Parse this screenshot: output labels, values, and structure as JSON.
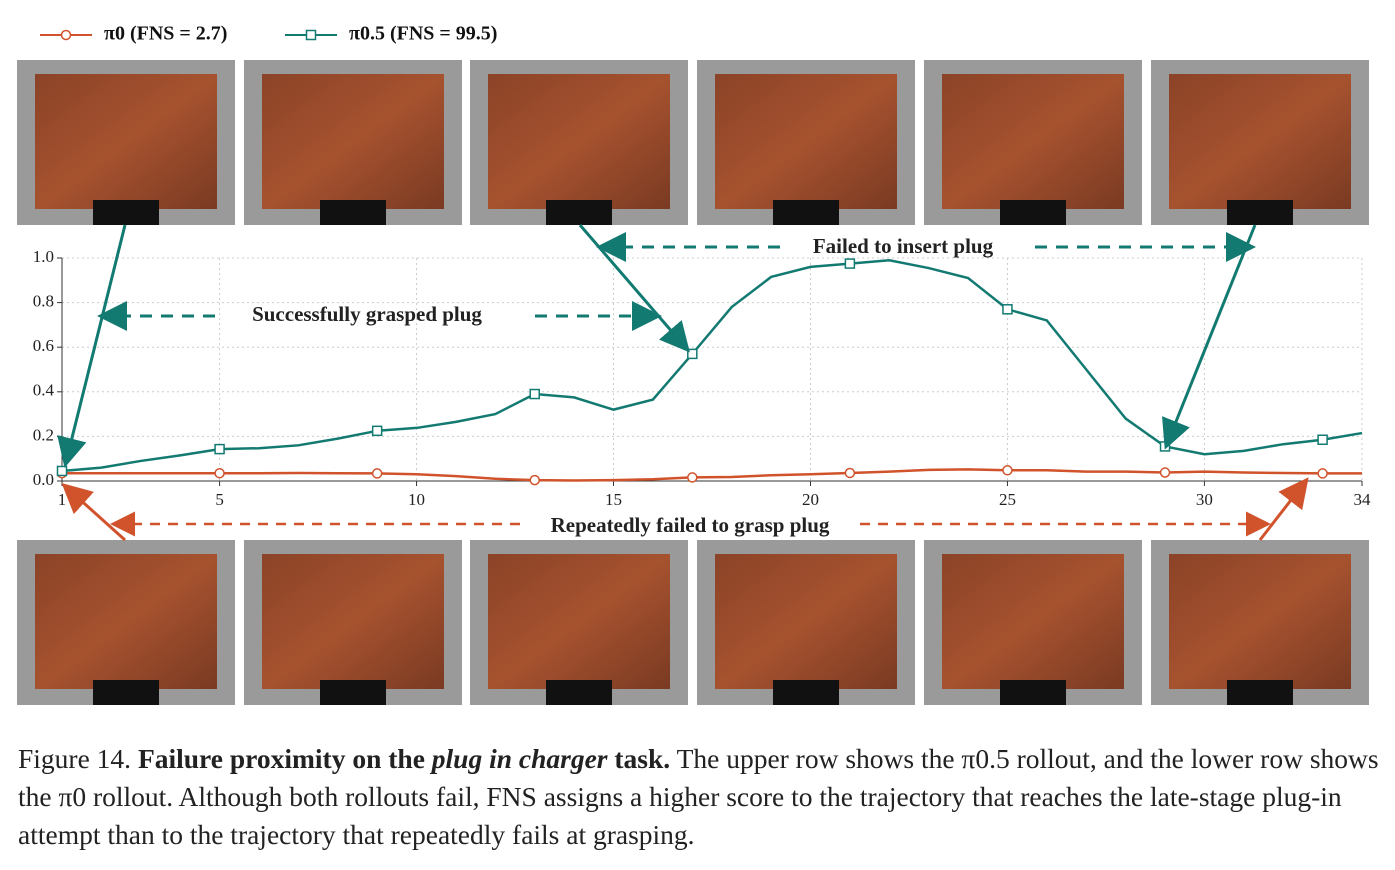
{
  "chart_data": {
    "type": "line",
    "x": [
      1,
      2,
      3,
      4,
      5,
      6,
      7,
      8,
      9,
      10,
      11,
      12,
      13,
      14,
      15,
      16,
      17,
      18,
      19,
      20,
      21,
      22,
      23,
      24,
      25,
      26,
      27,
      28,
      29,
      30,
      31,
      32,
      33,
      34
    ],
    "series": [
      {
        "name": "π0 (FNS = 2.7)",
        "color": "#d0532b",
        "marker": "circle",
        "values": [
          0.035,
          0.035,
          0.035,
          0.035,
          0.035,
          0.035,
          0.036,
          0.035,
          0.034,
          0.03,
          0.022,
          0.01,
          0.004,
          0.002,
          0.004,
          0.008,
          0.016,
          0.018,
          0.026,
          0.03,
          0.036,
          0.042,
          0.05,
          0.052,
          0.048,
          0.048,
          0.042,
          0.042,
          0.038,
          0.042,
          0.038,
          0.036,
          0.034,
          0.034
        ]
      },
      {
        "name": "π0.5 (FNS = 99.5)",
        "color": "#137a72",
        "marker": "square",
        "values": [
          0.045,
          0.06,
          0.09,
          0.115,
          0.143,
          0.147,
          0.16,
          0.19,
          0.225,
          0.238,
          0.265,
          0.3,
          0.39,
          0.375,
          0.32,
          0.365,
          0.57,
          0.78,
          0.915,
          0.96,
          0.975,
          0.99,
          0.955,
          0.91,
          0.77,
          0.72,
          0.5,
          0.28,
          0.155,
          0.12,
          0.135,
          0.165,
          0.185,
          0.215
        ]
      }
    ],
    "xlim": [
      1,
      34
    ],
    "xticks": [
      1,
      5,
      10,
      15,
      20,
      25,
      30,
      34
    ],
    "ylim": [
      0,
      1.0
    ],
    "yticks": [
      {
        "value": 0,
        "label": "0.0"
      },
      0.2,
      0.4,
      0.6,
      0.8,
      {
        "value": 1.0,
        "label": "1.0"
      }
    ],
    "grid": true,
    "legend": "top-left",
    "annotations": [
      "Successfully grasped plug",
      "Failed to insert plug",
      "Repeatedly failed to grasp plug"
    ]
  },
  "caption": {
    "label": "Figure 14.",
    "title_start": "Failure proximity on the",
    "title_italic": "plug in charger",
    "title_end": "task.",
    "text": "The upper row shows the π0.5 rollout, and the lower row shows the π0 rollout. Although both rollouts fail, FNS assigns a higher score to the trajectory that reaches the late-stage plug-in attempt than to the trajectory that repeatedly fails at grasping."
  }
}
